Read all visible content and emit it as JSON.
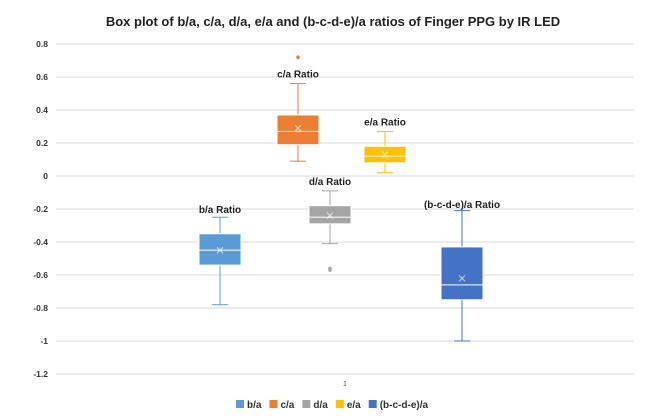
{
  "chart_data": {
    "type": "box",
    "title": "Box plot of b/a, c/a, d/a, e/a and (b-c-d-e)/a ratios of Finger PPG by IR LED",
    "xlabel": "",
    "ylabel": "",
    "categories": [
      "1"
    ],
    "ylim": [
      -1.2,
      0.8
    ],
    "y_ticks": [
      "0.8",
      "0.6",
      "0.4",
      "0.2",
      "0",
      "-0.2",
      "-0.4",
      "-0.6",
      "-0.8",
      "-1",
      "-1.2"
    ],
    "y_tick_values": [
      0.8,
      0.6,
      0.4,
      0.2,
      0,
      -0.2,
      -0.4,
      -0.6,
      -0.8,
      -1,
      -1.2
    ],
    "grid": true,
    "legend_position": "bottom",
    "series": [
      {
        "name": "b/a",
        "color": "#5b9bd5",
        "annotation": "b/a Ratio",
        "min": -0.78,
        "q1": -0.54,
        "median": -0.45,
        "q3": -0.35,
        "max": -0.25,
        "mean": -0.45,
        "outliers": []
      },
      {
        "name": "c/a",
        "color": "#ed7d31",
        "annotation": "c/a Ratio",
        "min": 0.09,
        "q1": 0.19,
        "median": 0.27,
        "q3": 0.37,
        "max": 0.56,
        "mean": 0.29,
        "outliers": [
          0.72
        ]
      },
      {
        "name": "d/a",
        "color": "#a5a5a5",
        "annotation": "d/a Ratio",
        "min": -0.41,
        "q1": -0.29,
        "median": -0.25,
        "q3": -0.18,
        "max": -0.09,
        "mean": -0.24,
        "outliers": [
          -0.56,
          -0.57
        ]
      },
      {
        "name": "e/a",
        "color": "#ffc000",
        "annotation": "e/a Ratio",
        "min": 0.02,
        "q1": 0.08,
        "median": 0.12,
        "q3": 0.18,
        "max": 0.27,
        "mean": 0.13,
        "outliers": []
      },
      {
        "name": "(b-c-d-e)/a",
        "color": "#4472c4",
        "annotation": "(b-c-d-e)/a Ratio",
        "min": -1.0,
        "q1": -0.75,
        "median": -0.66,
        "q3": -0.43,
        "max": -0.21,
        "mean": -0.62,
        "outliers": []
      }
    ]
  }
}
